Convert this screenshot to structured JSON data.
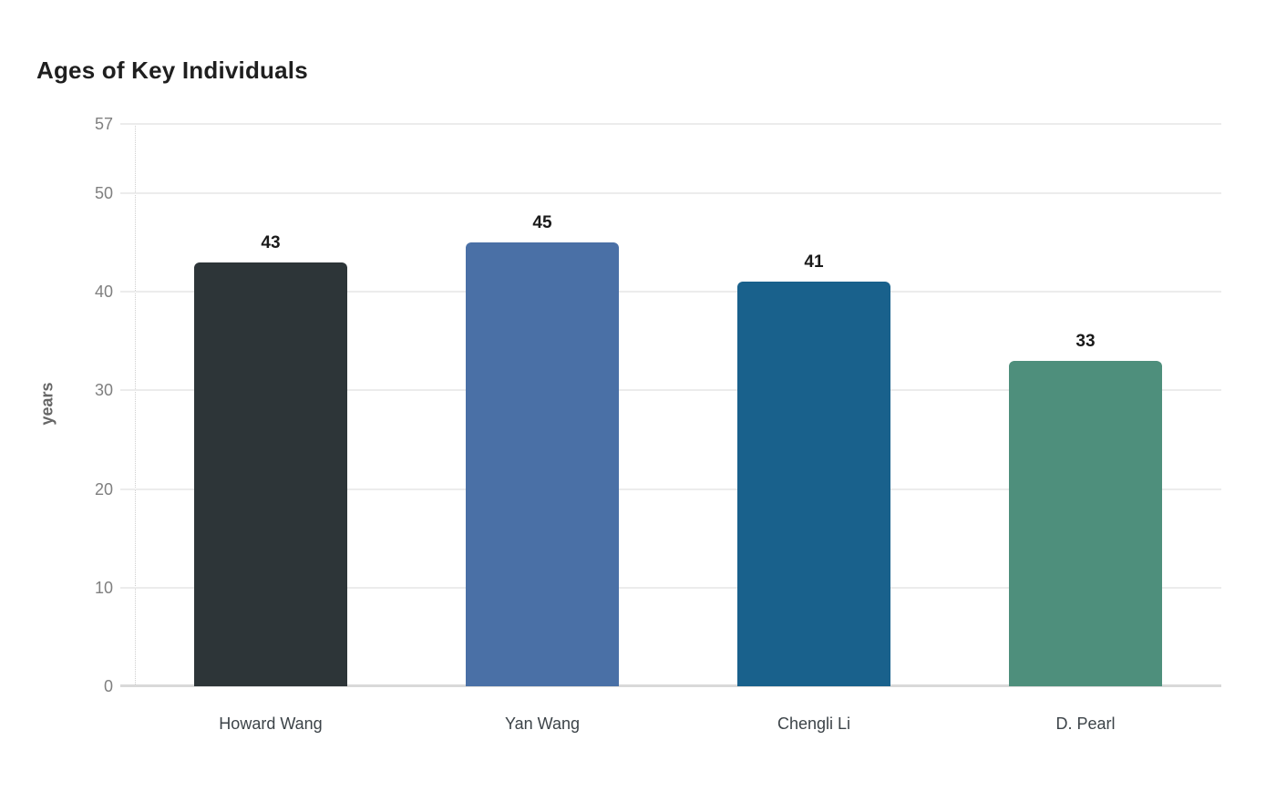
{
  "chart_data": {
    "type": "bar",
    "title": "Ages of Key Individuals",
    "xlabel": "",
    "ylabel": "years",
    "categories": [
      "Howard Wang",
      "Yan Wang",
      "Chengli Li",
      "D. Pearl"
    ],
    "values": [
      43,
      45,
      41,
      33
    ],
    "bar_colors": [
      "#2d3538",
      "#4a70a6",
      "#19618c",
      "#4e8f7c"
    ],
    "yticks": [
      0,
      10,
      20,
      30,
      40,
      50,
      57
    ],
    "ylim": [
      0,
      57
    ],
    "grid": "horizontal-only",
    "legend": "none",
    "value_labels_shown": true
  },
  "style": {
    "background_color": "#ffffff",
    "title_color": "#1f1f1f",
    "tick_label_color": "#7f7f7f",
    "axis_label_color": "#666666",
    "category_label_color": "#3c4348",
    "value_label_color": "#1a1a1a",
    "gridline_color": "#ececec",
    "baseline_color": "#d9d9d9",
    "axis_line_color": "#cfcfcf"
  }
}
